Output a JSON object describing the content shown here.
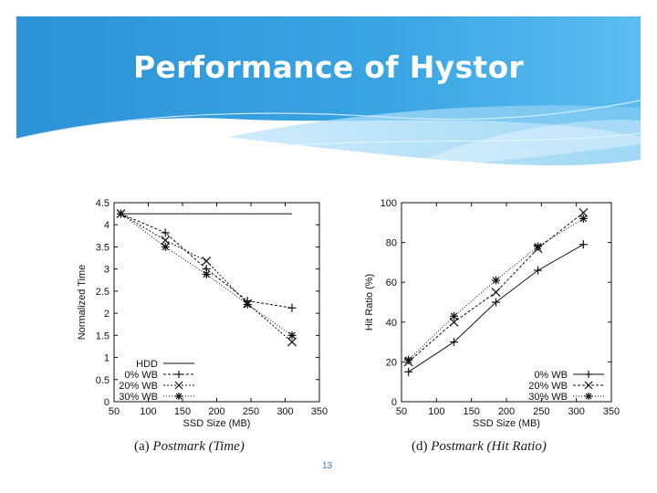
{
  "slide": {
    "title": "Performance of Hystor",
    "page_number": "13",
    "colors": {
      "header_blue": "#2f97d9",
      "header_light": "#8dd0f3"
    }
  },
  "chart_data": [
    {
      "id": "postmark-time",
      "type": "line",
      "caption_label": "(a)",
      "caption_title": "Postmark (Time)",
      "xlabel": "SSD Size (MB)",
      "ylabel": "Normalized Time",
      "xlim": [
        50,
        350
      ],
      "ylim": [
        0,
        4.5
      ],
      "xticks": [
        50,
        100,
        150,
        200,
        250,
        300,
        350
      ],
      "yticks": [
        0,
        0.5,
        1,
        1.5,
        2,
        2.5,
        3,
        3.5,
        4,
        4.5
      ],
      "legend_position": "bottom-left",
      "series": [
        {
          "name": "HDD",
          "marker": "none",
          "dash": "solid",
          "x": [
            60,
            310
          ],
          "y": [
            4.25,
            4.25
          ]
        },
        {
          "name": "0% WB",
          "marker": "plus",
          "dash": "3 2",
          "x": [
            60,
            125,
            185,
            245,
            310
          ],
          "y": [
            4.25,
            3.82,
            3.0,
            2.28,
            2.12
          ]
        },
        {
          "name": "20% WB",
          "marker": "x",
          "dash": "2 2",
          "x": [
            60,
            125,
            185,
            245,
            310
          ],
          "y": [
            4.25,
            3.65,
            3.18,
            2.22,
            1.35
          ]
        },
        {
          "name": "30% WB",
          "marker": "star",
          "dash": "1 2",
          "x": [
            60,
            125,
            185,
            245,
            310
          ],
          "y": [
            4.25,
            3.5,
            2.88,
            2.2,
            1.5
          ]
        }
      ]
    },
    {
      "id": "postmark-hit-ratio",
      "type": "line",
      "caption_label": "(d)",
      "caption_title": "Postmark (Hit Ratio)",
      "xlabel": "SSD Size (MB)",
      "ylabel": "Hit Ratio (%)",
      "xlim": [
        50,
        350
      ],
      "ylim": [
        0,
        100
      ],
      "xticks": [
        50,
        100,
        150,
        200,
        250,
        300,
        350
      ],
      "yticks": [
        0,
        20,
        40,
        60,
        80,
        100
      ],
      "legend_position": "bottom-right",
      "series": [
        {
          "name": "0% WB",
          "marker": "plus",
          "dash": "solid",
          "x": [
            60,
            125,
            185,
            245,
            310
          ],
          "y": [
            15,
            30,
            50,
            66,
            79
          ]
        },
        {
          "name": "20% WB",
          "marker": "x",
          "dash": "3 2",
          "x": [
            60,
            125,
            185,
            245,
            310
          ],
          "y": [
            20,
            40,
            55,
            77,
            95
          ]
        },
        {
          "name": "30% WB",
          "marker": "star",
          "dash": "1 2",
          "x": [
            60,
            125,
            185,
            245,
            310
          ],
          "y": [
            21,
            43,
            61,
            78,
            92
          ]
        }
      ]
    }
  ]
}
